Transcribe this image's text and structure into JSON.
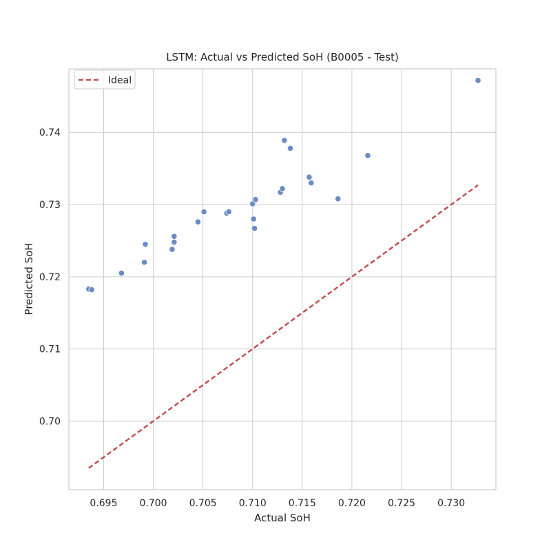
{
  "chart_data": {
    "type": "scatter",
    "title": "LSTM: Actual vs Predicted SoH (B0005 - Test)",
    "xlabel": "Actual SoH",
    "ylabel": "Predicted SoH",
    "xlim": [
      0.6915,
      0.7345
    ],
    "ylim": [
      0.6905,
      0.7488
    ],
    "xticks": [
      0.695,
      0.7,
      0.705,
      0.71,
      0.715,
      0.72,
      0.725,
      0.73
    ],
    "xtick_labels": [
      "0.695",
      "0.700",
      "0.705",
      "0.710",
      "0.715",
      "0.720",
      "0.725",
      "0.730"
    ],
    "yticks": [
      0.7,
      0.71,
      0.72,
      0.73,
      0.74
    ],
    "ytick_labels": [
      "0.70",
      "0.71",
      "0.72",
      "0.73",
      "0.74"
    ],
    "grid": true,
    "legend_position": "top-left",
    "series": [
      {
        "kind": "points",
        "color": "#6a8bc4",
        "x": [
          0.6935,
          0.6938,
          0.6968,
          0.6991,
          0.6992,
          0.7019,
          0.7021,
          0.7021,
          0.7045,
          0.7051,
          0.7074,
          0.7076,
          0.71,
          0.7101,
          0.7102,
          0.7103,
          0.7128,
          0.713,
          0.7132,
          0.7138,
          0.7157,
          0.7159,
          0.7186,
          0.7216,
          0.7327
        ],
        "y": [
          0.7183,
          0.7182,
          0.7205,
          0.722,
          0.7245,
          0.7238,
          0.7248,
          0.7256,
          0.7276,
          0.729,
          0.7288,
          0.729,
          0.7301,
          0.728,
          0.7267,
          0.7307,
          0.7317,
          0.7322,
          0.7389,
          0.7378,
          0.7338,
          0.733,
          0.7308,
          0.7368,
          0.7472
        ]
      },
      {
        "kind": "line",
        "name": "Ideal",
        "color": "#c44e52",
        "dashed": true,
        "x": [
          0.6935,
          0.7327
        ],
        "y": [
          0.6935,
          0.7327
        ]
      }
    ]
  }
}
